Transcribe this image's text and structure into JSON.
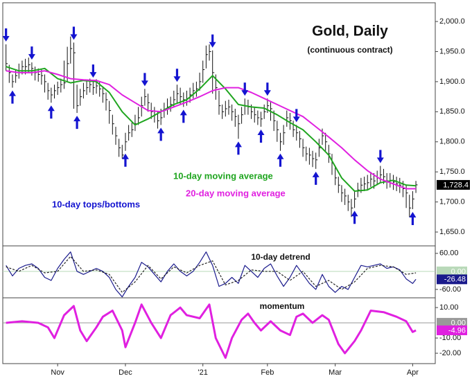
{
  "chart_data": [
    {
      "type": "ohlc",
      "title": "Gold, Daily",
      "subtitle": "(continuous contract)",
      "xlim": [
        -1,
        133
      ],
      "ylim": [
        1627,
        2030
      ],
      "yticks": [
        {
          "value": 2000,
          "label": "2,000.0"
        },
        {
          "value": 1950,
          "label": "1,950.0"
        },
        {
          "value": 1900,
          "label": "1,900.0"
        },
        {
          "value": 1850,
          "label": "1,850.0"
        },
        {
          "value": 1800,
          "label": "1,800.0"
        },
        {
          "value": 1750,
          "label": "1,750.0"
        },
        {
          "value": 1700,
          "label": "1,700.0"
        },
        {
          "value": 1650,
          "label": "1,650.0"
        }
      ],
      "bar_color": "#111111",
      "high": [
        1962,
        1928,
        1912,
        1920,
        1930,
        1935,
        1938,
        1940,
        1932,
        1925,
        1922,
        1920,
        1912,
        1898,
        1890,
        1895,
        1900,
        1905,
        1935,
        1958,
        1975,
        1965,
        1895,
        1888,
        1898,
        1902,
        1905,
        1902,
        1904,
        1900,
        1892,
        1882,
        1868,
        1845,
        1825,
        1805,
        1795,
        1815,
        1828,
        1832,
        1845,
        1858,
        1875,
        1888,
        1880,
        1865,
        1858,
        1850,
        1855,
        1865,
        1872,
        1875,
        1885,
        1895,
        1890,
        1882,
        1885,
        1890,
        1898,
        1900,
        1915,
        1935,
        1960,
        1962,
        1952,
        1912,
        1885,
        1862,
        1868,
        1870,
        1862,
        1855,
        1845,
        1858,
        1872,
        1870,
        1862,
        1858,
        1852,
        1850,
        1862,
        1872,
        1868,
        1852,
        1835,
        1815,
        1828,
        1852,
        1848,
        1835,
        1828,
        1818,
        1805,
        1792,
        1790,
        1785,
        1782,
        1805,
        1822,
        1815,
        1795,
        1780,
        1758,
        1742,
        1728,
        1722,
        1712,
        1705,
        1718,
        1732,
        1740,
        1742,
        1745,
        1750,
        1748,
        1752,
        1760,
        1755,
        1748,
        1748,
        1745,
        1742,
        1740,
        1735,
        1728,
        1712,
        1718,
        1735
      ],
      "low": [
        1918,
        1898,
        1890,
        1898,
        1905,
        1912,
        1912,
        1915,
        1910,
        1902,
        1900,
        1895,
        1882,
        1870,
        1865,
        1872,
        1878,
        1882,
        1888,
        1900,
        1930,
        1855,
        1848,
        1860,
        1872,
        1878,
        1882,
        1878,
        1880,
        1875,
        1865,
        1852,
        1830,
        1812,
        1795,
        1775,
        1772,
        1785,
        1802,
        1808,
        1818,
        1828,
        1842,
        1860,
        1850,
        1838,
        1832,
        1822,
        1828,
        1840,
        1845,
        1850,
        1858,
        1865,
        1862,
        1858,
        1860,
        1865,
        1872,
        1875,
        1885,
        1898,
        1922,
        1935,
        1880,
        1870,
        1845,
        1838,
        1842,
        1845,
        1835,
        1825,
        1805,
        1830,
        1845,
        1845,
        1838,
        1832,
        1828,
        1825,
        1838,
        1848,
        1835,
        1818,
        1800,
        1785,
        1795,
        1825,
        1820,
        1808,
        1802,
        1790,
        1775,
        1768,
        1762,
        1758,
        1755,
        1775,
        1795,
        1785,
        1765,
        1745,
        1728,
        1715,
        1700,
        1695,
        1685,
        1675,
        1690,
        1708,
        1715,
        1718,
        1720,
        1725,
        1722,
        1728,
        1732,
        1730,
        1722,
        1724,
        1720,
        1718,
        1715,
        1708,
        1690,
        1675,
        1688,
        1715
      ],
      "close": [
        1930,
        1915,
        1900,
        1910,
        1918,
        1925,
        1925,
        1928,
        1922,
        1915,
        1912,
        1910,
        1900,
        1885,
        1878,
        1885,
        1890,
        1895,
        1898,
        1930,
        1955,
        1948,
        1860,
        1875,
        1885,
        1890,
        1895,
        1890,
        1893,
        1888,
        1880,
        1870,
        1852,
        1830,
        1810,
        1790,
        1778,
        1800,
        1815,
        1820,
        1830,
        1840,
        1860,
        1875,
        1865,
        1850,
        1845,
        1835,
        1840,
        1852,
        1858,
        1862,
        1870,
        1880,
        1875,
        1870,
        1872,
        1878,
        1885,
        1888,
        1900,
        1920,
        1945,
        1950,
        1915,
        1890,
        1860,
        1850,
        1855,
        1858,
        1850,
        1842,
        1830,
        1845,
        1860,
        1858,
        1850,
        1845,
        1840,
        1838,
        1850,
        1860,
        1855,
        1835,
        1820,
        1800,
        1815,
        1840,
        1835,
        1820,
        1815,
        1805,
        1790,
        1780,
        1778,
        1772,
        1770,
        1790,
        1810,
        1800,
        1780,
        1765,
        1740,
        1728,
        1715,
        1710,
        1700,
        1690,
        1705,
        1720,
        1728,
        1730,
        1732,
        1738,
        1735,
        1740,
        1745,
        1742,
        1735,
        1736,
        1733,
        1730,
        1728,
        1722,
        1715,
        1690,
        1705,
        1728.4
      ],
      "last_label": "1,728.4",
      "series": [
        {
          "name": "10-day moving average",
          "color": "#1fa51f",
          "x": [
            0,
            4,
            8,
            12,
            16,
            20,
            24,
            28,
            32,
            36,
            40,
            44,
            48,
            52,
            56,
            60,
            64,
            68,
            72,
            76,
            80,
            84,
            88,
            92,
            96,
            100,
            104,
            108,
            112,
            116,
            120,
            124,
            127
          ],
          "values": [
            1925,
            1918,
            1918,
            1922,
            1905,
            1898,
            1902,
            1900,
            1882,
            1850,
            1828,
            1838,
            1850,
            1862,
            1870,
            1888,
            1910,
            1888,
            1862,
            1858,
            1856,
            1845,
            1832,
            1820,
            1800,
            1778,
            1740,
            1718,
            1720,
            1732,
            1736,
            1728,
            1727
          ]
        },
        {
          "name": "20-day moving average",
          "color": "#e020e0",
          "x": [
            0,
            4,
            8,
            12,
            16,
            20,
            24,
            28,
            32,
            36,
            40,
            44,
            48,
            52,
            56,
            60,
            64,
            68,
            72,
            76,
            80,
            84,
            88,
            92,
            96,
            100,
            104,
            108,
            112,
            116,
            120,
            124,
            127
          ],
          "values": [
            1918,
            1915,
            1915,
            1918,
            1912,
            1905,
            1903,
            1902,
            1895,
            1878,
            1865,
            1852,
            1850,
            1858,
            1866,
            1875,
            1885,
            1890,
            1890,
            1882,
            1872,
            1862,
            1852,
            1842,
            1825,
            1808,
            1790,
            1770,
            1752,
            1738,
            1730,
            1722,
            1722
          ]
        }
      ],
      "arrow_label": "10-day tops/bottoms",
      "arrow_color": "#1414d0",
      "tops": [
        0,
        8,
        21,
        27,
        43,
        53,
        64,
        74,
        81,
        90,
        116
      ],
      "bottoms": [
        2,
        14,
        22,
        37,
        48,
        55,
        72,
        79,
        85,
        96,
        108,
        126
      ]
    },
    {
      "type": "line",
      "title": "10-day detrend",
      "xlim": [
        -1,
        133
      ],
      "ylim": [
        -88,
        85
      ],
      "yticks": [
        {
          "value": 60,
          "label": "60.00"
        },
        {
          "value": 0,
          "label": "0.00"
        },
        {
          "value": -60,
          "label": "-60.00"
        }
      ],
      "zero_line_color": "#b9d9b9",
      "series": [
        {
          "color": "#1a1a8c",
          "last_label": "-26.48",
          "x": [
            0,
            2,
            4,
            6,
            8,
            10,
            12,
            14,
            16,
            18,
            20,
            22,
            24,
            26,
            28,
            30,
            32,
            34,
            36,
            38,
            40,
            42,
            44,
            46,
            48,
            50,
            52,
            54,
            56,
            58,
            60,
            62,
            64,
            66,
            68,
            70,
            72,
            74,
            76,
            78,
            80,
            82,
            84,
            86,
            88,
            90,
            92,
            94,
            96,
            98,
            100,
            102,
            104,
            106,
            108,
            110,
            112,
            114,
            116,
            118,
            120,
            122,
            124,
            126,
            127
          ],
          "values": [
            20,
            -15,
            10,
            20,
            25,
            10,
            -20,
            -30,
            10,
            40,
            65,
            0,
            -10,
            0,
            10,
            0,
            -20,
            -60,
            -85,
            -50,
            -20,
            30,
            15,
            -10,
            -35,
            0,
            25,
            0,
            -15,
            0,
            30,
            65,
            20,
            -50,
            -40,
            -20,
            -40,
            20,
            0,
            -20,
            10,
            25,
            -15,
            -50,
            -20,
            20,
            -10,
            -40,
            -60,
            -10,
            -50,
            -70,
            -50,
            -60,
            -20,
            20,
            15,
            20,
            25,
            10,
            15,
            5,
            -25,
            -40,
            -26.48
          ]
        },
        {
          "color": "#222222",
          "dash": true,
          "x": [
            0,
            4,
            8,
            12,
            16,
            20,
            24,
            28,
            32,
            36,
            40,
            44,
            48,
            52,
            56,
            60,
            64,
            68,
            72,
            76,
            80,
            84,
            88,
            92,
            96,
            100,
            104,
            108,
            112,
            116,
            120,
            124,
            127
          ],
          "values": [
            15,
            0,
            20,
            -5,
            0,
            50,
            0,
            5,
            -10,
            -70,
            -35,
            20,
            -25,
            15,
            -5,
            20,
            35,
            -45,
            -30,
            5,
            0,
            0,
            -30,
            0,
            -50,
            -30,
            -60,
            -35,
            10,
            20,
            15,
            -10,
            -5
          ]
        }
      ]
    },
    {
      "type": "line",
      "title": "momentum",
      "xlim": [
        -1,
        133
      ],
      "ylim": [
        -26.8,
        16.4
      ],
      "yticks": [
        {
          "value": 10,
          "label": "10.00"
        },
        {
          "value": 0,
          "label": "0.00"
        },
        {
          "value": -10,
          "label": "-10.00"
        },
        {
          "value": -20,
          "label": "-20.00"
        }
      ],
      "zero_line_color": "#999999",
      "xticks": [
        {
          "value": 16,
          "label": "Nov"
        },
        {
          "value": 37,
          "label": "Dec"
        },
        {
          "value": 61,
          "label": "'21"
        },
        {
          "value": 81,
          "label": "Feb"
        },
        {
          "value": 102,
          "label": "Mar"
        },
        {
          "value": 126,
          "label": "Apr"
        }
      ],
      "series": [
        {
          "color": "#e020e0",
          "width": 3,
          "last_label": "-4.96",
          "x": [
            0,
            5,
            10,
            13,
            15,
            18,
            21,
            23,
            25,
            28,
            30,
            33,
            36,
            37,
            40,
            42,
            45,
            48,
            51,
            54,
            56,
            60,
            63,
            65,
            68,
            70,
            73,
            75,
            77,
            79,
            82,
            85,
            88,
            90,
            92,
            95,
            98,
            100,
            103,
            105,
            108,
            110,
            113,
            117,
            121,
            124,
            126,
            127
          ],
          "values": [
            0,
            1,
            0,
            -3,
            -10,
            5,
            11,
            -5,
            -12,
            -3,
            4,
            8,
            -5,
            -16,
            0,
            12,
            0,
            -10,
            5,
            10,
            5,
            3,
            12,
            -10,
            -23,
            -10,
            2,
            6,
            0,
            -5,
            1,
            -5,
            -8,
            4,
            6,
            0,
            5,
            2,
            -14,
            -20,
            -12,
            -5,
            8,
            7,
            4,
            1,
            -6,
            -4.96
          ]
        }
      ]
    }
  ]
}
